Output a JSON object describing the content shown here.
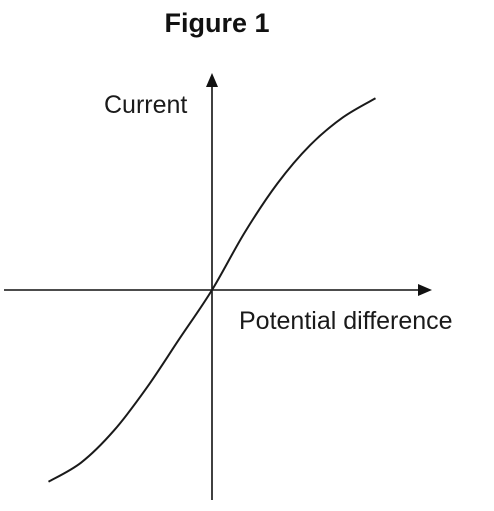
{
  "figure": {
    "title": "Figure 1"
  },
  "chart_data": {
    "type": "line",
    "title": "Figure 1",
    "xlabel": "Potential difference",
    "ylabel": "Current",
    "xlim": [
      -1,
      1
    ],
    "ylim": [
      -1,
      1
    ],
    "grid": false,
    "ticks": "none",
    "series": [
      {
        "x": [
          -0.75,
          -0.6,
          -0.45,
          -0.3,
          -0.15,
          0,
          0.15,
          0.3,
          0.45,
          0.6,
          0.75
        ],
        "y": [
          -0.9,
          -0.81,
          -0.66,
          -0.46,
          -0.23,
          0,
          0.27,
          0.5,
          0.68,
          0.81,
          0.9
        ]
      }
    ]
  }
}
